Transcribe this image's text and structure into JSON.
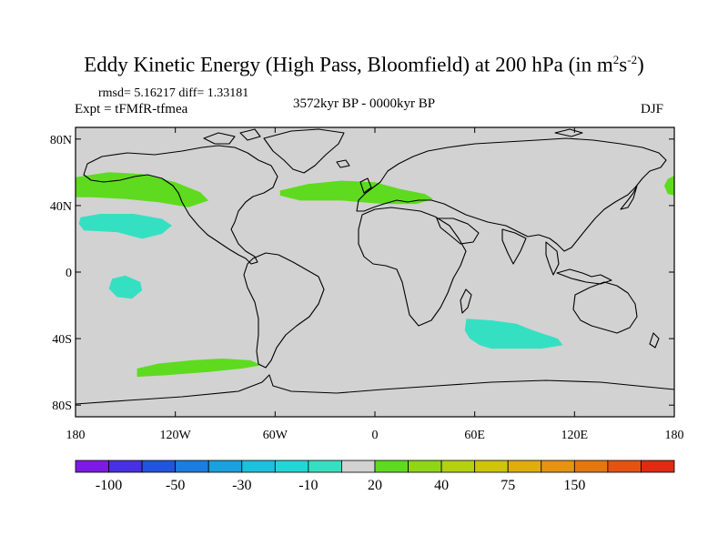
{
  "title": {
    "main": "Eddy Kinetic Energy (High Pass, Bloomfield) at 200 hPa (in m",
    "sup1": "2",
    "mid": "s",
    "sup2": "-2",
    "close": ")"
  },
  "stats": "rmsd= 5.16217  diff= 1.33181",
  "experiment": "Expt = tFMfR-tfmea",
  "period": "3572kyr BP - 0000kyr BP",
  "season": "DJF",
  "map": {
    "land_color": "#d2d2d2",
    "outline_color": "#000000",
    "x_ticks": [
      {
        "lon": -180,
        "label": "180"
      },
      {
        "lon": -120,
        "label": "120W"
      },
      {
        "lon": -60,
        "label": "60W"
      },
      {
        "lon": 0,
        "label": "0"
      },
      {
        "lon": 60,
        "label": "60E"
      },
      {
        "lon": 120,
        "label": "120E"
      },
      {
        "lon": 180,
        "label": "180"
      }
    ],
    "y_ticks": [
      {
        "lat": 80,
        "label": "80N"
      },
      {
        "lat": 40,
        "label": "40N"
      },
      {
        "lat": 0,
        "label": "0"
      },
      {
        "lat": -40,
        "label": "40S"
      },
      {
        "lat": -80,
        "label": "80S"
      }
    ],
    "anomalies": [
      {
        "name": "north-pacific-positive",
        "level": 20,
        "color": "#5edb1e",
        "points": [
          [
            -180,
            57
          ],
          [
            -160,
            60
          ],
          [
            -140,
            59
          ],
          [
            -120,
            54
          ],
          [
            -105,
            48
          ],
          [
            -100,
            43
          ],
          [
            -112,
            39
          ],
          [
            -130,
            42
          ],
          [
            -150,
            44
          ],
          [
            -170,
            45
          ],
          [
            -180,
            45
          ]
        ]
      },
      {
        "name": "north-atlantic-positive",
        "level": 20,
        "color": "#5edb1e",
        "points": [
          [
            -57,
            49
          ],
          [
            -40,
            53
          ],
          [
            -20,
            55
          ],
          [
            0,
            54
          ],
          [
            15,
            50
          ],
          [
            30,
            47
          ],
          [
            35,
            44
          ],
          [
            25,
            41
          ],
          [
            5,
            41
          ],
          [
            -20,
            43
          ],
          [
            -45,
            43
          ],
          [
            -57,
            46
          ]
        ]
      },
      {
        "name": "dateline-east-positive",
        "level": 20,
        "color": "#5edb1e",
        "points": [
          [
            180,
            58
          ],
          [
            176,
            56
          ],
          [
            174,
            52
          ],
          [
            176,
            47
          ],
          [
            180,
            46
          ]
        ]
      },
      {
        "name": "subtropical-pacific-negative",
        "level": -10,
        "color": "#35e0c2",
        "points": [
          [
            -177,
            33
          ],
          [
            -165,
            35
          ],
          [
            -145,
            35
          ],
          [
            -128,
            32
          ],
          [
            -122,
            28
          ],
          [
            -128,
            23
          ],
          [
            -140,
            20
          ],
          [
            -155,
            24
          ],
          [
            -175,
            25
          ],
          [
            -178,
            29
          ]
        ]
      },
      {
        "name": "equatorial-pacific-negative",
        "level": -10,
        "color": "#35e0c2",
        "points": [
          [
            -158,
            -4
          ],
          [
            -150,
            -2
          ],
          [
            -141,
            -6
          ],
          [
            -140,
            -11
          ],
          [
            -146,
            -16
          ],
          [
            -155,
            -15
          ],
          [
            -160,
            -10
          ]
        ]
      },
      {
        "name": "south-indian-negative",
        "level": -10,
        "color": "#35e0c2",
        "points": [
          [
            55,
            -28
          ],
          [
            70,
            -29
          ],
          [
            85,
            -31
          ],
          [
            95,
            -35
          ],
          [
            110,
            -40
          ],
          [
            113,
            -44
          ],
          [
            100,
            -46
          ],
          [
            80,
            -46
          ],
          [
            70,
            -46
          ],
          [
            63,
            -44
          ],
          [
            57,
            -40
          ],
          [
            54,
            -35
          ]
        ]
      },
      {
        "name": "south-pacific-positive",
        "level": 20,
        "color": "#5edb1e",
        "points": [
          [
            -143,
            -58
          ],
          [
            -130,
            -55
          ],
          [
            -110,
            -53
          ],
          [
            -92,
            -52
          ],
          [
            -75,
            -53
          ],
          [
            -68,
            -56
          ],
          [
            -80,
            -58
          ],
          [
            -100,
            -60
          ],
          [
            -125,
            -62
          ],
          [
            -143,
            -63
          ]
        ]
      }
    ]
  },
  "colorbar": {
    "colors": [
      "#7e1ae6",
      "#4830e6",
      "#2155e0",
      "#1b7de0",
      "#1aa1de",
      "#1cc1de",
      "#23d6d6",
      "#35e0c2",
      "#d2d2d2",
      "#5edb1e",
      "#8fd616",
      "#b3d10e",
      "#cfc40a",
      "#e0ae0c",
      "#e6940f",
      "#e6770e",
      "#e65212",
      "#e02a13"
    ],
    "labels": [
      {
        "boundary": 1,
        "text": "-100"
      },
      {
        "boundary": 3,
        "text": "-50"
      },
      {
        "boundary": 5,
        "text": "-30"
      },
      {
        "boundary": 7,
        "text": "-10"
      },
      {
        "boundary": 9,
        "text": "20"
      },
      {
        "boundary": 11,
        "text": "40"
      },
      {
        "boundary": 13,
        "text": "75"
      },
      {
        "boundary": 15,
        "text": "150"
      }
    ]
  }
}
